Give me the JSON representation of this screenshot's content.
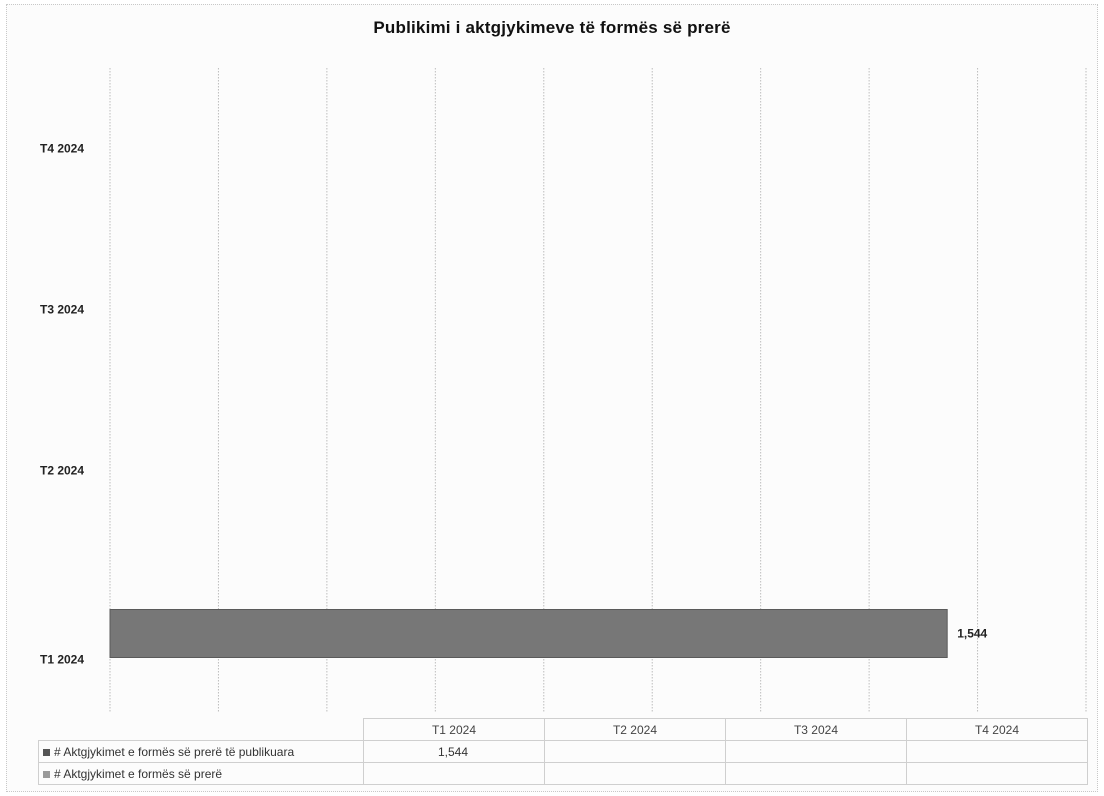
{
  "chart_data": {
    "type": "bar",
    "orientation": "horizontal",
    "title": "Publikimi i aktgjykimeve të formës së prerë",
    "categories": [
      "T1 2024",
      "T2 2024",
      "T3 2024",
      "T4 2024"
    ],
    "series": [
      {
        "name": "# Aktgjykimet e formës së prerë të publikuara",
        "values": [
          1544,
          null,
          null,
          null
        ],
        "color": "#777777"
      },
      {
        "name": "# Aktgjykimet e formës së prerë",
        "values": [
          null,
          null,
          null,
          null
        ],
        "color": "#9a9a9a"
      }
    ],
    "data_labels": [
      "1,544",
      "",
      "",
      ""
    ],
    "xlim": [
      0,
      1800
    ],
    "grid": true,
    "legend": "data-table"
  },
  "table": {
    "rows": [
      {
        "label": "# Aktgjykimet e formës së prerë të publikuara",
        "cells": [
          "1,544",
          "",
          "",
          ""
        ]
      },
      {
        "label": "# Aktgjykimet e formës së prerë",
        "cells": [
          "",
          "",
          "",
          ""
        ]
      }
    ]
  }
}
